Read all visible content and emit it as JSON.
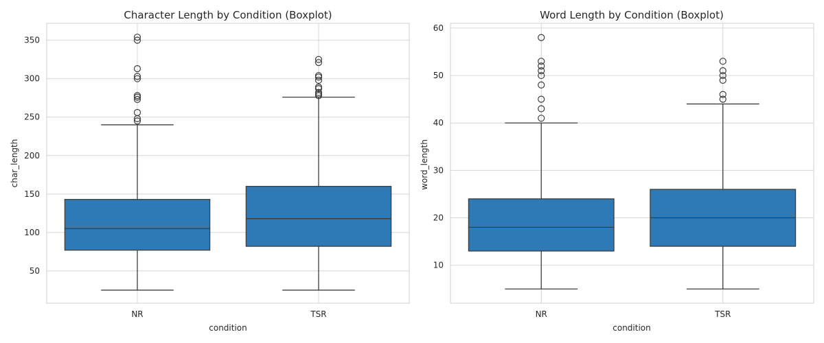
{
  "chart_data": [
    {
      "type": "boxplot",
      "title": "Character Length by Condition (Boxplot)",
      "xlabel": "condition",
      "ylabel": "char_length",
      "ylim": [
        8,
        372
      ],
      "yticks": [
        50,
        100,
        150,
        200,
        250,
        300,
        350
      ],
      "categories": [
        "NR",
        "TSR"
      ],
      "color": "#2f79b4",
      "grid": true,
      "boxes": [
        {
          "category": "NR",
          "whisker_low": 25,
          "q1": 77,
          "median": 105,
          "q3": 143,
          "whisker_high": 240,
          "outliers": [
            245,
            248,
            256,
            273,
            276,
            278,
            300,
            303,
            313,
            350,
            354
          ]
        },
        {
          "category": "TSR",
          "whisker_low": 25,
          "q1": 82,
          "median": 118,
          "q3": 160,
          "whisker_high": 276,
          "outliers": [
            278,
            280,
            282,
            287,
            289,
            298,
            302,
            304,
            321,
            325
          ]
        }
      ]
    },
    {
      "type": "boxplot",
      "title": "Word Length by Condition (Boxplot)",
      "xlabel": "condition",
      "ylabel": "word_length",
      "ylim": [
        2,
        61
      ],
      "yticks": [
        10,
        20,
        30,
        40,
        50,
        60
      ],
      "categories": [
        "NR",
        "TSR"
      ],
      "color": "#2f79b4",
      "grid": true,
      "boxes": [
        {
          "category": "NR",
          "whisker_low": 5,
          "q1": 13,
          "median": 18,
          "q3": 24,
          "whisker_high": 40,
          "outliers": [
            41,
            43,
            45,
            48,
            50,
            51,
            52,
            53,
            58
          ]
        },
        {
          "category": "TSR",
          "whisker_low": 5,
          "q1": 14,
          "median": 20,
          "q3": 26,
          "whisker_high": 44,
          "outliers": [
            45,
            46,
            49,
            50,
            51,
            53
          ]
        }
      ]
    }
  ]
}
